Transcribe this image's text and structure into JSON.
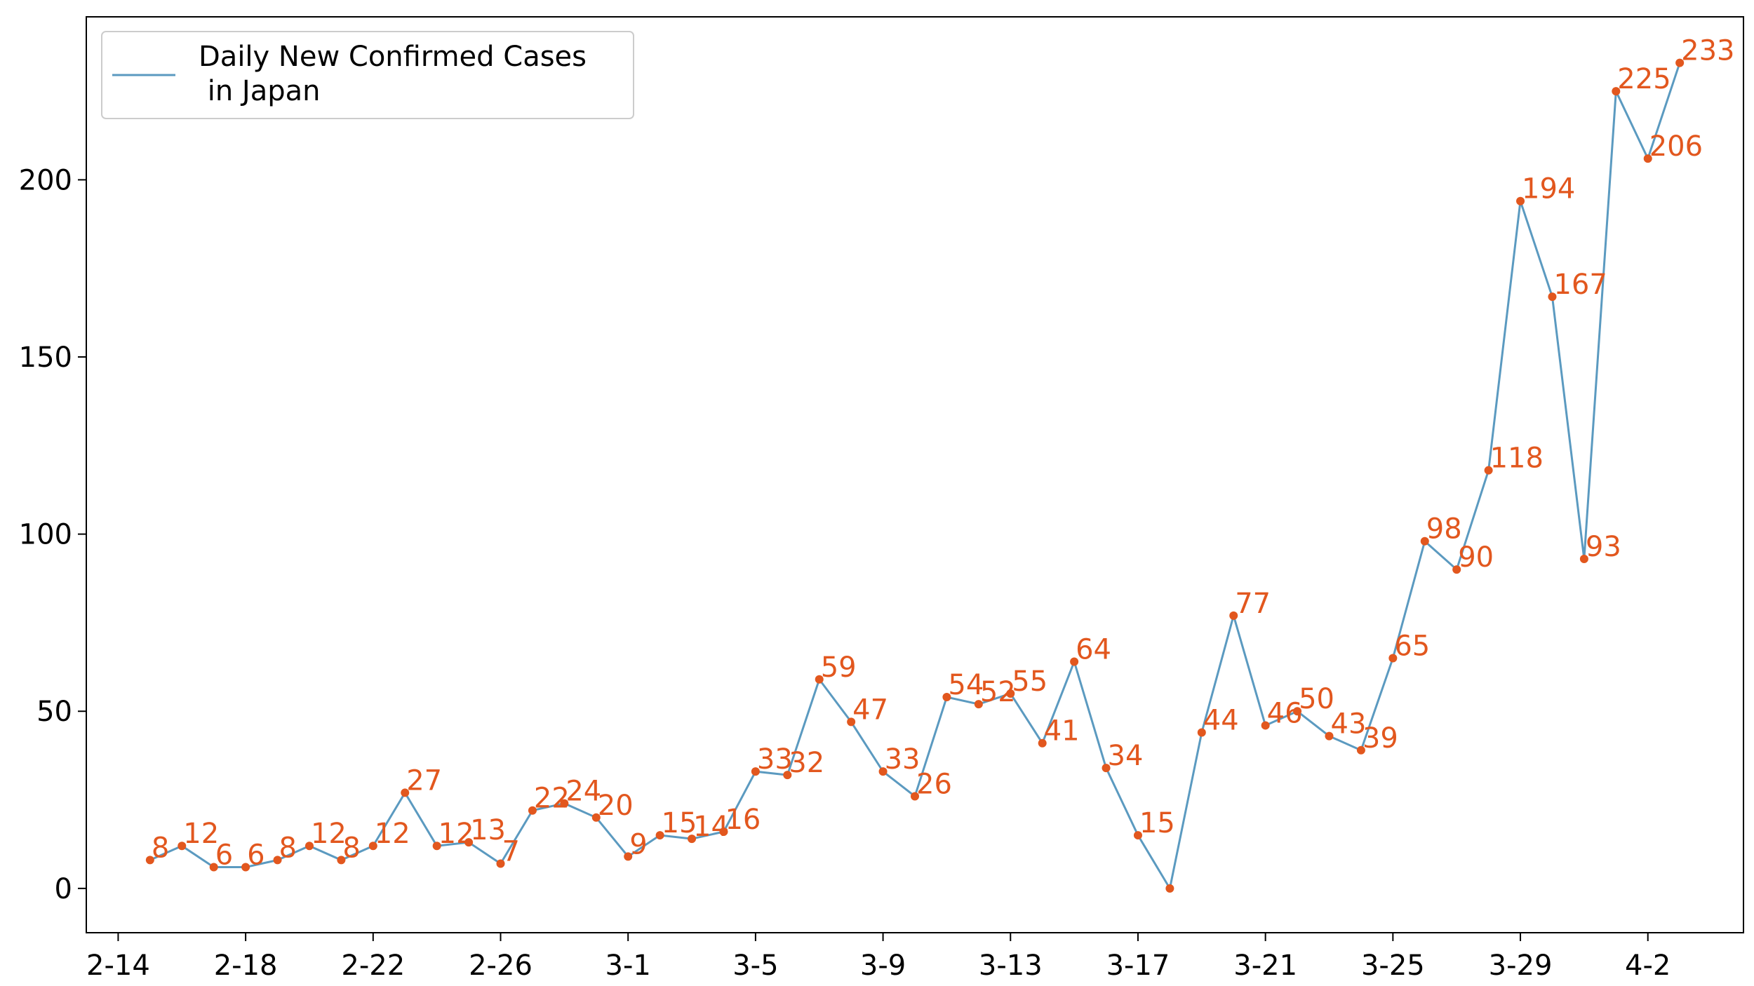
{
  "chart_data": {
    "type": "line",
    "x": [
      "2-15",
      "2-16",
      "2-17",
      "2-18",
      "2-19",
      "2-20",
      "2-21",
      "2-22",
      "2-23",
      "2-24",
      "2-25",
      "2-26",
      "2-27",
      "2-28",
      "2-29",
      "3-1",
      "3-2",
      "3-3",
      "3-4",
      "3-5",
      "3-6",
      "3-7",
      "3-8",
      "3-9",
      "3-10",
      "3-11",
      "3-12",
      "3-13",
      "3-14",
      "3-15",
      "3-16",
      "3-17",
      "3-18",
      "3-19",
      "3-20",
      "3-21",
      "3-22",
      "3-23",
      "3-24",
      "3-25",
      "3-26",
      "3-27",
      "3-28",
      "3-29",
      "3-30",
      "3-31",
      "4-1",
      "4-2",
      "4-3"
    ],
    "series": [
      {
        "name": "Daily New Confirmed Cases\n in Japan",
        "legend_line1": "Daily New Confirmed Cases",
        "legend_line2": " in Japan",
        "values": [
          8,
          12,
          6,
          6,
          8,
          12,
          8,
          12,
          27,
          12,
          13,
          7,
          22,
          24,
          20,
          9,
          15,
          14,
          16,
          33,
          32,
          59,
          47,
          33,
          26,
          54,
          52,
          55,
          41,
          64,
          34,
          15,
          0,
          44,
          77,
          46,
          50,
          43,
          39,
          65,
          98,
          90,
          118,
          194,
          167,
          93,
          225,
          206,
          233
        ],
        "labels": [
          "8",
          "12",
          "6",
          "6",
          "8",
          "12",
          "8",
          "12",
          "27",
          "12",
          "13",
          "7",
          "22",
          "24",
          "20",
          "9",
          "15",
          "14",
          "16",
          "33",
          "32",
          "59",
          "47",
          "33",
          "26",
          "54",
          "52",
          "55",
          "41",
          "64",
          "34",
          "15",
          "",
          "44",
          "77",
          "46",
          "50",
          "43",
          "39",
          "65",
          "98",
          "90",
          "118",
          "194",
          "167",
          "93",
          "225",
          "206",
          "233"
        ],
        "line_color": "#5b9ac0",
        "marker_color": "#e2571e",
        "label_color": "#e2571e"
      }
    ],
    "xticks": [
      "2-14",
      "2-18",
      "2-22",
      "2-26",
      "3-1",
      "3-5",
      "3-9",
      "3-13",
      "3-17",
      "3-21",
      "3-25",
      "3-29",
      "4-2"
    ],
    "xtick_index": [
      -1,
      3,
      7,
      11,
      15,
      19,
      23,
      27,
      31,
      35,
      39,
      43,
      47
    ],
    "yticks": [
      0,
      50,
      100,
      150,
      200
    ],
    "ytick_labels": [
      "0",
      "50",
      "100",
      "150",
      "200"
    ],
    "ylim": [
      -12.5,
      246
    ],
    "xlim_index": [
      -2.0,
      50.0
    ],
    "grid": false,
    "legend_position": "upper-left",
    "title": "",
    "xlabel": "",
    "ylabel": ""
  }
}
